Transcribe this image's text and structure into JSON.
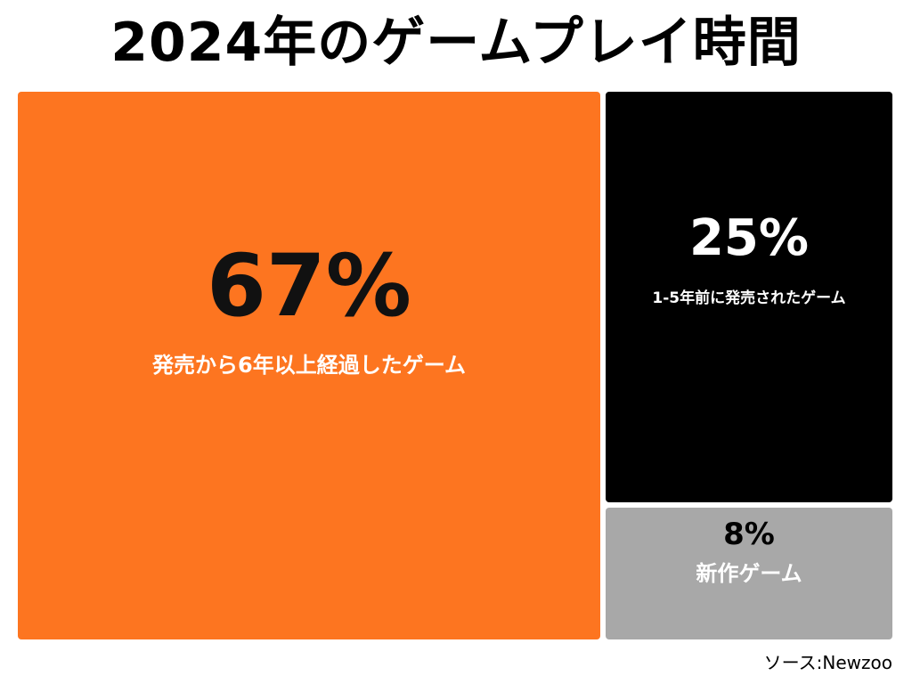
{
  "chart_data": {
    "type": "treemap",
    "title": "2024年のゲームプレイ時間",
    "unit": "%",
    "items": [
      {
        "label": "発売から6年以上経過したゲーム",
        "value": 67,
        "value_text": "67%",
        "color": "#fd7520",
        "text_color": "#111111",
        "label_color": "#ffffff"
      },
      {
        "label": "1-5年前に発売されたゲーム",
        "value": 25,
        "value_text": "25%",
        "color": "#000000",
        "text_color": "#ffffff",
        "label_color": "#ffffff"
      },
      {
        "label": "新作ゲーム",
        "value": 8,
        "value_text": "8%",
        "color": "#a8a8a8",
        "text_color": "#000000",
        "label_color": "#ffffff"
      }
    ]
  },
  "source": "ソース:Newzoo"
}
